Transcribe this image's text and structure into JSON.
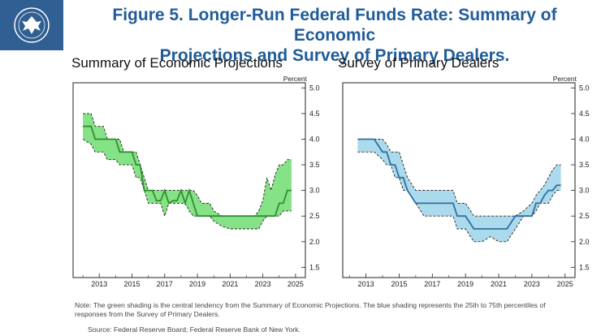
{
  "header": {
    "title_line1": "Figure 5. Longer-Run Federal Funds Rate: Summary of Economic",
    "title_line2": "Projections and Survey of Primary Dealers.",
    "logo_icon": "federal-reserve-seal-icon",
    "brand_color": "#2f5f93"
  },
  "chart_data": [
    {
      "type": "area",
      "title": "Summary of Economic Projections",
      "ylabel": "Percent",
      "xlabel": "",
      "xlim": [
        2011.4,
        2025.6
      ],
      "ylim": [
        1.3,
        5.1
      ],
      "xticks": [
        2013,
        2015,
        2017,
        2019,
        2021,
        2023,
        2025
      ],
      "yticks": [
        1.5,
        2.0,
        2.5,
        3.0,
        3.5,
        4.0,
        4.5,
        5.0
      ],
      "fill_color": "#7fe07f",
      "line_color": "#2f8f2f",
      "series": [
        {
          "name": "Central tendency upper",
          "x": [
            2012.0,
            2012.5,
            2012.75,
            2013.25,
            2013.5,
            2014.0,
            2014.25,
            2014.5,
            2014.75,
            2015.0,
            2015.25,
            2015.5,
            2015.75,
            2016.0,
            2016.25,
            2016.5,
            2016.75,
            2017.0,
            2017.25,
            2017.5,
            2017.75,
            2018.0,
            2018.25,
            2018.5,
            2018.75,
            2019.0,
            2019.25,
            2019.5,
            2019.75,
            2020.0,
            2020.5,
            2021.0,
            2021.5,
            2022.0,
            2022.5,
            2022.75,
            2023.0,
            2023.25,
            2023.5,
            2023.75,
            2024.0,
            2024.25,
            2024.5,
            2024.75
          ],
          "values": [
            4.5,
            4.5,
            4.25,
            4.25,
            4.0,
            4.0,
            4.0,
            3.75,
            3.75,
            3.75,
            3.75,
            3.5,
            3.25,
            3.0,
            3.0,
            3.0,
            3.0,
            3.0,
            3.0,
            3.0,
            3.0,
            3.0,
            3.0,
            3.0,
            3.0,
            2.9,
            2.75,
            2.75,
            2.75,
            2.6,
            2.5,
            2.5,
            2.5,
            2.5,
            2.5,
            2.6,
            2.8,
            3.25,
            3.0,
            3.3,
            3.5,
            3.5,
            3.6,
            3.6
          ]
        },
        {
          "name": "Central tendency lower",
          "x": [
            2012.0,
            2012.5,
            2012.75,
            2013.25,
            2013.5,
            2014.0,
            2014.25,
            2014.5,
            2014.75,
            2015.0,
            2015.25,
            2015.5,
            2015.75,
            2016.0,
            2016.25,
            2016.5,
            2016.75,
            2017.0,
            2017.25,
            2017.5,
            2017.75,
            2018.0,
            2018.25,
            2018.5,
            2018.75,
            2019.0,
            2019.25,
            2019.5,
            2019.75,
            2020.0,
            2020.5,
            2021.0,
            2021.5,
            2022.0,
            2022.5,
            2022.75,
            2023.0,
            2023.25,
            2023.5,
            2023.75,
            2024.0,
            2024.25,
            2024.5,
            2024.75
          ],
          "values": [
            4.0,
            3.9,
            3.75,
            3.75,
            3.6,
            3.6,
            3.5,
            3.5,
            3.5,
            3.5,
            3.25,
            3.25,
            3.0,
            2.75,
            2.75,
            2.75,
            2.75,
            2.5,
            2.75,
            2.75,
            2.75,
            2.75,
            2.75,
            2.6,
            2.5,
            2.5,
            2.5,
            2.5,
            2.5,
            2.4,
            2.3,
            2.25,
            2.25,
            2.25,
            2.25,
            2.25,
            2.4,
            2.5,
            2.5,
            2.5,
            2.5,
            2.6,
            2.6,
            2.6
          ]
        },
        {
          "name": "Median",
          "x": [
            2012.0,
            2012.5,
            2012.75,
            2013.25,
            2013.5,
            2014.0,
            2014.25,
            2014.5,
            2014.75,
            2015.0,
            2015.25,
            2015.5,
            2015.75,
            2016.0,
            2016.25,
            2016.5,
            2016.75,
            2017.0,
            2017.25,
            2017.5,
            2017.75,
            2018.0,
            2018.25,
            2018.5,
            2018.75,
            2019.0,
            2019.25,
            2019.5,
            2019.75,
            2020.0,
            2020.5,
            2021.0,
            2021.5,
            2022.0,
            2022.5,
            2022.75,
            2023.0,
            2023.25,
            2023.5,
            2023.75,
            2024.0,
            2024.25,
            2024.5,
            2024.75
          ],
          "values": [
            4.25,
            4.25,
            4.0,
            4.0,
            4.0,
            4.0,
            3.75,
            3.75,
            3.75,
            3.75,
            3.5,
            3.5,
            3.0,
            3.0,
            3.0,
            2.8,
            2.8,
            3.0,
            2.75,
            2.8,
            2.8,
            3.0,
            2.75,
            3.0,
            2.75,
            2.5,
            2.5,
            2.5,
            2.5,
            2.5,
            2.5,
            2.5,
            2.5,
            2.5,
            2.5,
            2.5,
            2.5,
            2.5,
            2.5,
            2.5,
            2.75,
            2.75,
            3.0,
            3.0
          ]
        }
      ]
    },
    {
      "type": "area",
      "title": "Survey of Primary Dealers",
      "ylabel": "Percent",
      "xlabel": "",
      "xlim": [
        2011.6,
        2025.6
      ],
      "ylim": [
        1.3,
        5.1
      ],
      "xticks": [
        2013,
        2015,
        2017,
        2019,
        2021,
        2023,
        2025
      ],
      "yticks": [
        1.5,
        2.0,
        2.5,
        3.0,
        3.5,
        4.0,
        4.5,
        5.0
      ],
      "fill_color": "#a8d8ec",
      "line_color": "#2f6f9f",
      "series": [
        {
          "name": "75th percentile",
          "x": [
            2012.5,
            2013.0,
            2013.5,
            2014.0,
            2014.25,
            2014.5,
            2014.75,
            2015.0,
            2015.25,
            2015.5,
            2016.0,
            2016.5,
            2017.0,
            2017.5,
            2018.0,
            2018.25,
            2018.5,
            2019.0,
            2019.5,
            2020.0,
            2020.5,
            2021.0,
            2021.5,
            2022.0,
            2022.5,
            2023.0,
            2023.25,
            2023.5,
            2023.75,
            2024.0,
            2024.25,
            2024.5,
            2024.75
          ],
          "values": [
            4.0,
            4.0,
            4.0,
            4.0,
            3.9,
            3.75,
            3.75,
            3.75,
            3.5,
            3.25,
            3.0,
            3.0,
            3.0,
            3.0,
            3.0,
            3.0,
            2.75,
            2.75,
            2.5,
            2.5,
            2.5,
            2.5,
            2.5,
            2.5,
            2.6,
            2.75,
            2.9,
            3.0,
            3.1,
            3.25,
            3.4,
            3.5,
            3.5
          ]
        },
        {
          "name": "25th percentile",
          "x": [
            2012.5,
            2013.0,
            2013.5,
            2014.0,
            2014.25,
            2014.5,
            2014.75,
            2015.0,
            2015.25,
            2015.5,
            2016.0,
            2016.5,
            2017.0,
            2017.5,
            2018.0,
            2018.25,
            2018.5,
            2019.0,
            2019.5,
            2020.0,
            2020.5,
            2021.0,
            2021.5,
            2022.0,
            2022.5,
            2023.0,
            2023.25,
            2023.5,
            2023.75,
            2024.0,
            2024.25,
            2024.5,
            2024.75
          ],
          "values": [
            3.75,
            3.75,
            3.75,
            3.6,
            3.5,
            3.5,
            3.25,
            3.25,
            3.0,
            3.0,
            2.75,
            2.5,
            2.5,
            2.5,
            2.5,
            2.5,
            2.25,
            2.25,
            2.0,
            2.0,
            2.1,
            2.0,
            2.0,
            2.25,
            2.5,
            2.5,
            2.6,
            2.75,
            2.75,
            2.75,
            2.9,
            3.0,
            3.0
          ]
        },
        {
          "name": "Median",
          "x": [
            2012.5,
            2013.0,
            2013.5,
            2014.0,
            2014.25,
            2014.5,
            2014.75,
            2015.0,
            2015.25,
            2015.5,
            2016.0,
            2016.5,
            2017.0,
            2017.5,
            2018.0,
            2018.25,
            2018.5,
            2019.0,
            2019.5,
            2020.0,
            2020.5,
            2021.0,
            2021.5,
            2022.0,
            2022.5,
            2023.0,
            2023.25,
            2023.5,
            2023.75,
            2024.0,
            2024.25,
            2024.5,
            2024.75
          ],
          "values": [
            4.0,
            4.0,
            4.0,
            3.75,
            3.75,
            3.5,
            3.5,
            3.25,
            3.25,
            3.0,
            2.75,
            2.75,
            2.75,
            2.75,
            2.75,
            2.75,
            2.5,
            2.5,
            2.25,
            2.25,
            2.25,
            2.25,
            2.25,
            2.5,
            2.5,
            2.5,
            2.75,
            2.75,
            2.9,
            3.0,
            3.0,
            3.1,
            3.1
          ]
        }
      ]
    }
  ],
  "footer": {
    "note": "Note: The green shading is the central tendency from the Summary of Economic Projections. The blue shading represents the 25th to 75th percentiles of responses from the Survey of Primary Dealers.",
    "source": "Source: Federal Reserve Board; Federal Reserve Bank of New York."
  }
}
